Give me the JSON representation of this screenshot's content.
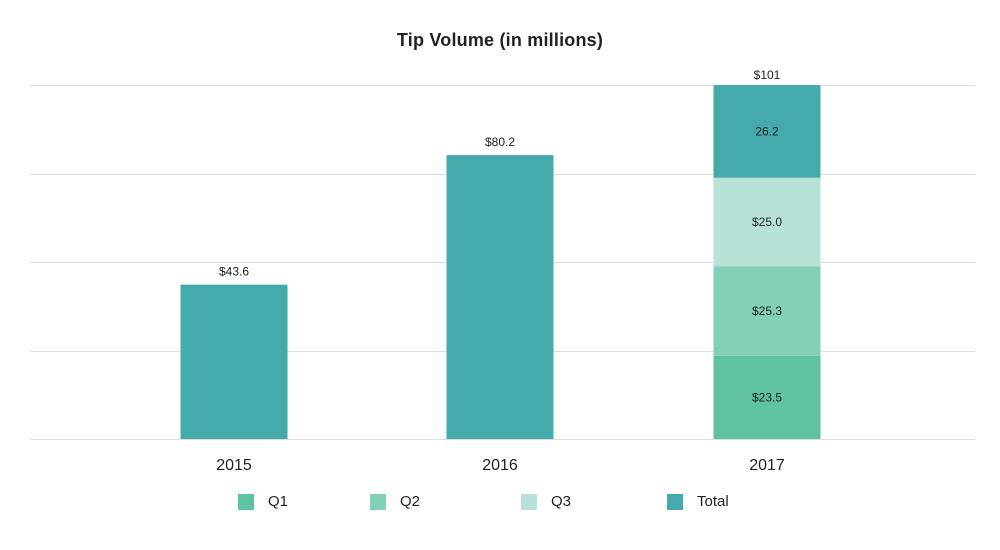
{
  "chart_data": {
    "type": "bar",
    "title": "Tip Volume (in millions)",
    "categories": [
      "2015",
      "2016",
      "2017"
    ],
    "totals": [
      43.6,
      80.2,
      101
    ],
    "total_labels": [
      "$43.6",
      "$80.2",
      "$101"
    ],
    "stacked": {
      "category": "2017",
      "segments": [
        {
          "name": "Q1",
          "value": 23.5,
          "label": "$23.5"
        },
        {
          "name": "Q2",
          "value": 25.3,
          "label": "$25.3"
        },
        {
          "name": "Q3",
          "value": 25.0,
          "label": "$25.0"
        },
        {
          "name": "Total",
          "value": 26.2,
          "label": "26.2"
        }
      ]
    },
    "series": [
      {
        "name": "Q1",
        "color": "#5ec2a3"
      },
      {
        "name": "Q2",
        "color": "#83cfb8"
      },
      {
        "name": "Q3",
        "color": "#b7e2d8"
      },
      {
        "name": "Total",
        "color": "#45aaac"
      }
    ],
    "ylim": [
      0,
      100
    ],
    "grid": true,
    "legend": "bottom"
  }
}
